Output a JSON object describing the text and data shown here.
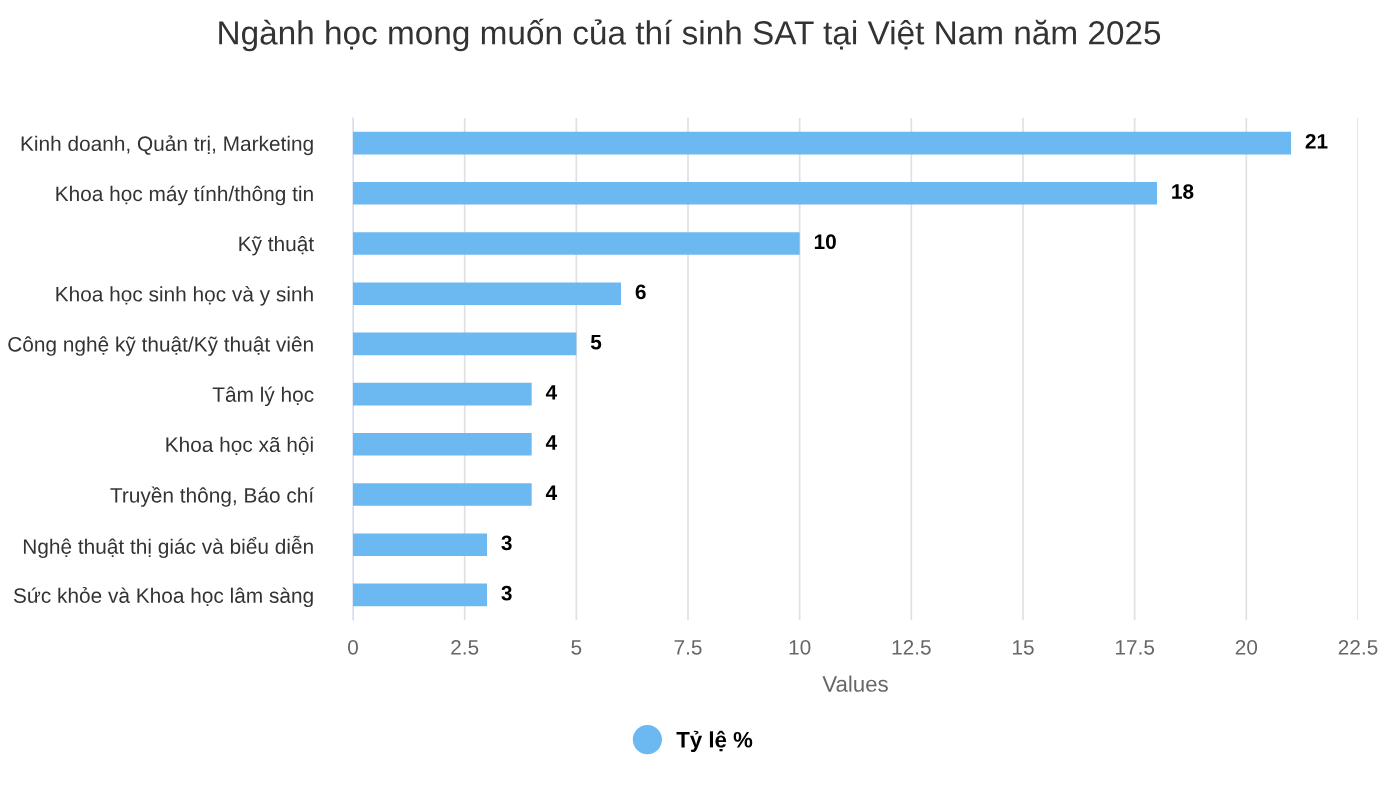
{
  "chart_data": {
    "type": "bar",
    "orientation": "horizontal",
    "title": "Ngành học mong muốn của thí sinh SAT tại Việt Nam năm 2025",
    "xlabel": "Values",
    "categories": [
      "Kinh doanh, Quản trị, Marketing",
      "Khoa học máy tính/thông tin",
      "Kỹ thuật",
      "Khoa học sinh học và y sinh",
      "Công nghệ kỹ thuật/Kỹ thuật viên",
      "Tâm lý học",
      "Khoa học xã hội",
      "Truyền thông, Báo chí",
      "Nghệ thuật thị giác và biểu diễn",
      "Sức khỏe và Khoa học lâm sàng"
    ],
    "series": [
      {
        "name": "Tỷ lệ %",
        "color": "#6cb8f0",
        "values": [
          21,
          18,
          10,
          6,
          5,
          4,
          4,
          4,
          3,
          3
        ]
      }
    ],
    "xlim": [
      0,
      22.5
    ],
    "xticks": [
      0,
      2.5,
      5,
      7.5,
      10,
      12.5,
      15,
      17.5,
      20,
      22.5
    ],
    "grid": "x",
    "legend": "bottom",
    "data_labels": true
  }
}
